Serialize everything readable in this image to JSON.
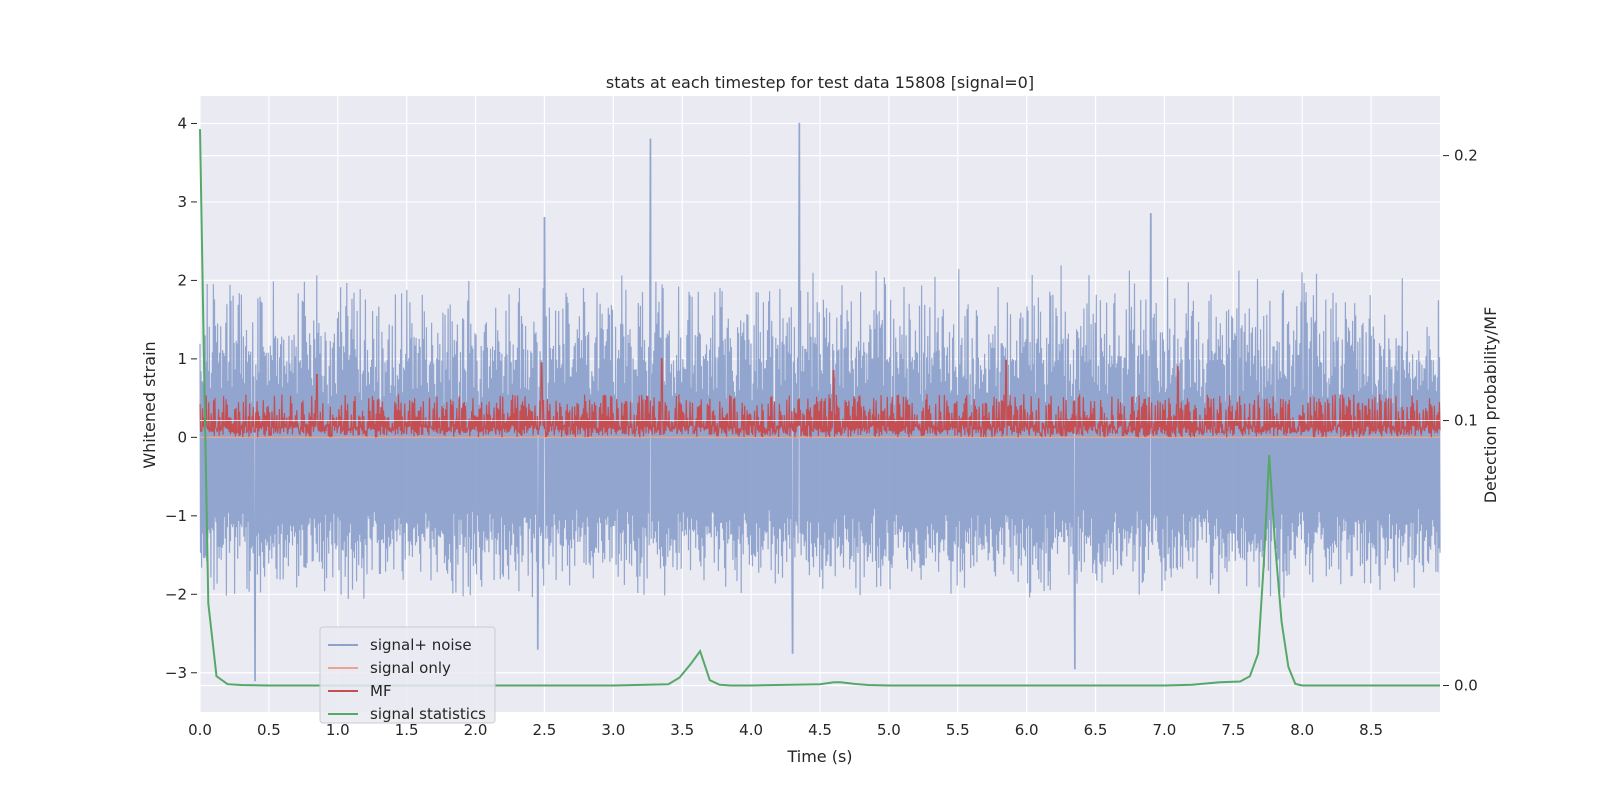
{
  "chart_data": {
    "type": "line",
    "title": "stats at each timestep for test data 15808 [signal=0]",
    "xlabel": "Time (s)",
    "ylabel": "Whitened strain",
    "y2label": "Detection probability/MF",
    "xlim": [
      0.0,
      9.0
    ],
    "ylim": [
      -3.5,
      4.35
    ],
    "y2lim": [
      -0.01,
      0.2225
    ],
    "grid": true,
    "legend_position": "lower-left",
    "xticks": [
      "0.0",
      "0.5",
      "1.0",
      "1.5",
      "2.0",
      "2.5",
      "3.0",
      "3.5",
      "4.0",
      "4.5",
      "5.0",
      "5.5",
      "6.0",
      "6.5",
      "7.0",
      "7.5",
      "8.0",
      "8.5"
    ],
    "yticks": [
      "−3",
      "−2",
      "−1",
      "0",
      "1",
      "2",
      "3",
      "4"
    ],
    "y2ticks": [
      "0.0",
      "0.1",
      "0.2"
    ],
    "series": [
      {
        "name": "signal+ noise",
        "color": "#8da1cb",
        "axis": "left",
        "description_values": {
          "center": -0.5,
          "typical_upper": [
            1.0,
            2.2
          ],
          "typical_lower": [
            -2.1,
            -1.2
          ],
          "peaks": [
            {
              "x": 3.27,
              "y": 3.8
            },
            {
              "x": 4.35,
              "y": 4.0
            },
            {
              "x": 2.5,
              "y": 2.8
            },
            {
              "x": 6.9,
              "y": 2.85
            },
            {
              "x": 0.4,
              "y": -3.1
            },
            {
              "x": 6.35,
              "y": -2.95
            },
            {
              "x": 4.3,
              "y": -2.75
            },
            {
              "x": 2.45,
              "y": -2.7
            }
          ]
        }
      },
      {
        "name": "signal only",
        "color": "#e9a58b",
        "axis": "left",
        "values_description": "flat at 0"
      },
      {
        "name": "MF",
        "color": "#c44e52",
        "axis": "left",
        "description_values": {
          "baseline": 0.0,
          "typical_upper": 0.55,
          "peaks": [
            {
              "x": 2.48,
              "y": 0.95
            },
            {
              "x": 3.35,
              "y": 1.0
            },
            {
              "x": 5.85,
              "y": 0.98
            },
            {
              "x": 7.1,
              "y": 0.9
            },
            {
              "x": 0.85,
              "y": 0.8
            },
            {
              "x": 4.6,
              "y": 0.85
            }
          ]
        }
      },
      {
        "name": "signal statistics",
        "color": "#55a868",
        "axis": "right",
        "x": [
          0.0,
          0.03,
          0.06,
          0.12,
          0.2,
          0.3,
          0.5,
          1.0,
          2.0,
          3.0,
          3.4,
          3.48,
          3.56,
          3.63,
          3.7,
          3.77,
          3.85,
          4.0,
          4.5,
          4.6,
          4.65,
          4.75,
          4.85,
          5.0,
          6.0,
          7.0,
          7.2,
          7.4,
          7.55,
          7.62,
          7.68,
          7.72,
          7.76,
          7.8,
          7.85,
          7.9,
          7.95,
          8.0,
          8.5,
          9.0
        ],
        "y": [
          0.21,
          0.12,
          0.031,
          0.0035,
          0.0005,
          0.0002,
          0.0,
          0.0,
          0.0,
          0.0,
          0.0005,
          0.003,
          0.008,
          0.013,
          0.002,
          0.0003,
          0.0,
          0.0,
          0.0005,
          0.0012,
          0.0012,
          0.0006,
          0.0002,
          0.0,
          0.0,
          0.0,
          0.0003,
          0.0012,
          0.0015,
          0.0035,
          0.012,
          0.045,
          0.087,
          0.055,
          0.024,
          0.007,
          0.0006,
          0.0,
          0.0,
          0.0
        ]
      }
    ]
  },
  "legend": {
    "items": [
      {
        "label": "signal+ noise",
        "color": "#8da1cb"
      },
      {
        "label": "signal only",
        "color": "#e9a58b"
      },
      {
        "label": "MF",
        "color": "#c44e52"
      },
      {
        "label": "signal statistics",
        "color": "#55a868"
      }
    ]
  }
}
